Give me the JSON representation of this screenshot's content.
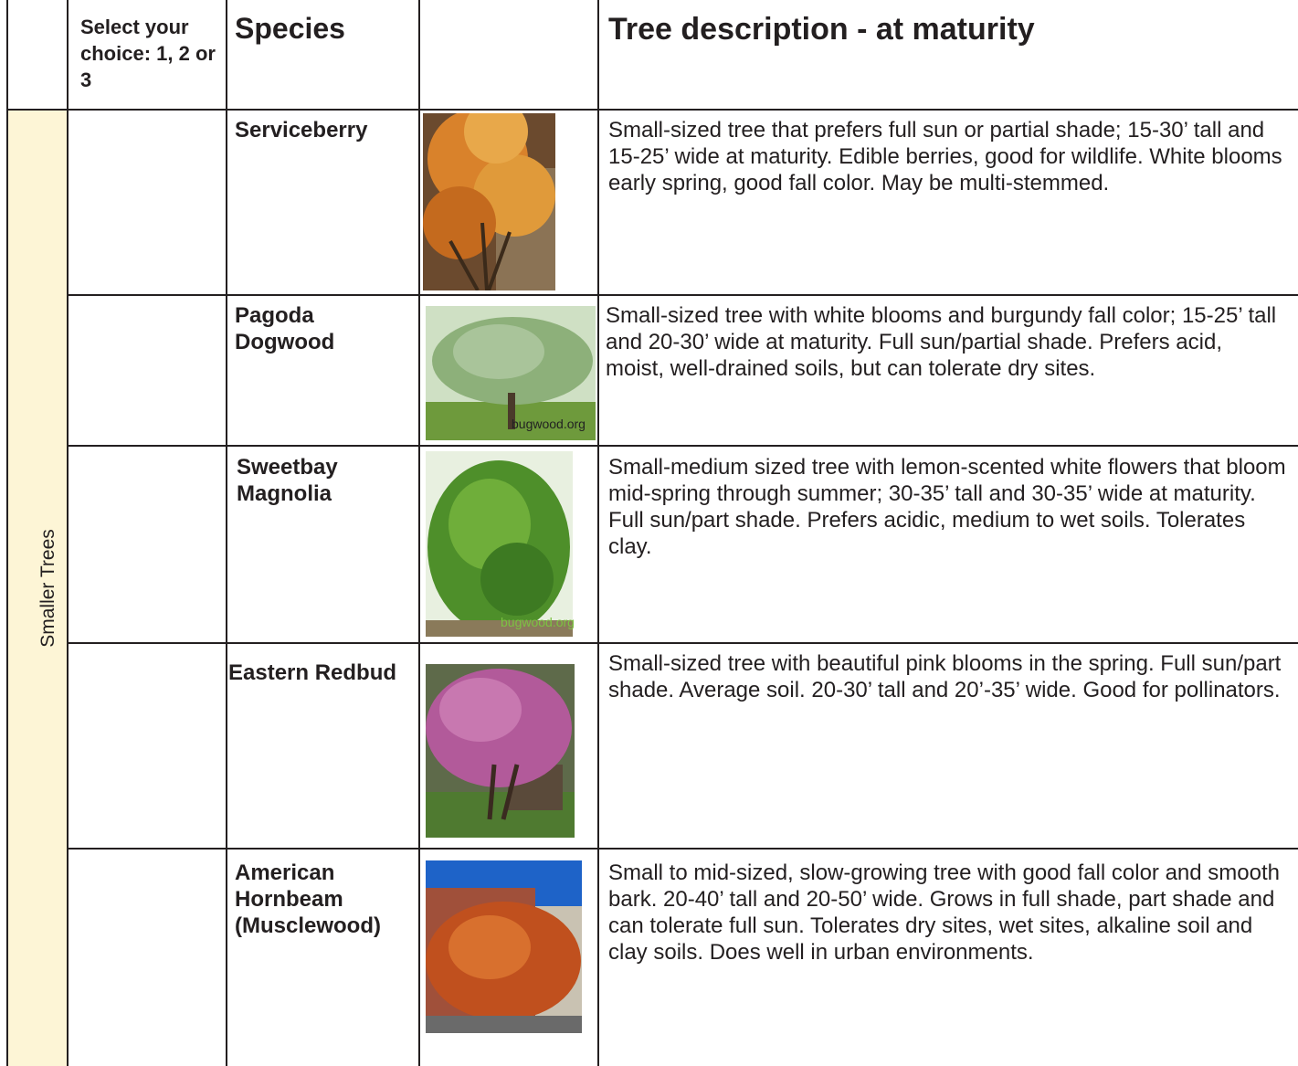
{
  "header": {
    "select": "Select your choice: 1, 2 or 3",
    "species": "Species",
    "description": "Tree description - at maturity"
  },
  "group": "Smaller Trees",
  "rows": [
    {
      "species": "Serviceberry",
      "description": "Small-sized tree that prefers full sun or partial shade; 15-30’ tall and 15-25’ wide at maturity. Edible berries, good for wildlife. White blooms early spring, good fall color. May be multi-stemmed."
    },
    {
      "species": "Pagoda Dogwood",
      "description": "Small-sized tree with white blooms and burgundy fall color; 15-25’ tall and 20-30’ wide at maturity. Full sun/partial shade. Prefers acid, moist, well-drained soils, but can tolerate dry sites.",
      "credit": "bugwood.org"
    },
    {
      "species": "Sweetbay Magnolia",
      "description": "Small-medium sized tree with lemon-scented white flowers that bloom mid-spring through summer; 30-35’ tall and 30-35’ wide at maturity. Full sun/part shade. Prefers acidic, medium to wet soils. Tolerates clay.",
      "credit": "bugwood.org"
    },
    {
      "species": "Eastern Redbud",
      "description": "Small-sized tree with beautiful pink blooms in the spring. Full sun/part shade. Average soil. 20-30’ tall and 20’-35’ wide. Good for pollinators."
    },
    {
      "species": "American Hornbeam (Musclewood)",
      "description": "Small to mid-sized, slow-growing tree with good fall color and smooth bark. 20-40’ tall and 20-50’ wide. Grows in full shade, part shade and can tolerate full sun. Tolerates dry sites, wet sites, alkaline soil and clay soils. Does well in urban environments."
    }
  ]
}
